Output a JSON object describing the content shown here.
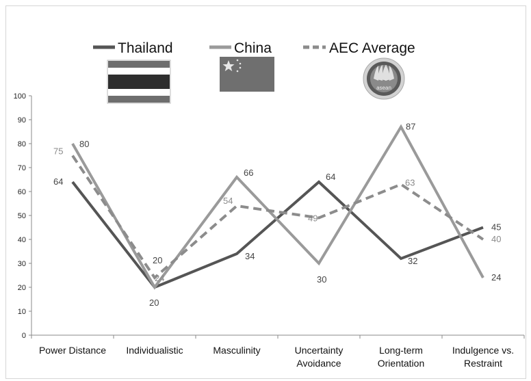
{
  "chart_data": {
    "type": "line",
    "categories": [
      "Power Distance",
      "Individualistic",
      "Masculinity",
      "Uncertainty Avoidance",
      "Long-term Orientation",
      "Indulgence vs. Restraint"
    ],
    "category_lines": [
      [
        "Power Distance"
      ],
      [
        "Individualistic"
      ],
      [
        "Masculinity"
      ],
      [
        "Uncertainty",
        "Avoidance"
      ],
      [
        "Long-term",
        "Orientation"
      ],
      [
        "Indulgence vs.",
        "Restraint"
      ]
    ],
    "ylim": [
      0,
      100
    ],
    "yticks": [
      0,
      10,
      20,
      30,
      40,
      50,
      60,
      70,
      80,
      90,
      100
    ],
    "grid": false,
    "legend_position": "top",
    "series": [
      {
        "name": "Thailand",
        "values": [
          64,
          20,
          34,
          64,
          32,
          45
        ],
        "color": "#555555",
        "dash": false,
        "icon": "thailand-flag-icon"
      },
      {
        "name": "China",
        "values": [
          80,
          20,
          66,
          30,
          87,
          24
        ],
        "color": "#9a9a9a",
        "dash": false,
        "icon": "china-flag-icon"
      },
      {
        "name": "AEC Average",
        "values": [
          75,
          24,
          54,
          49,
          63,
          40
        ],
        "color": "#8c8c8c",
        "dash": true,
        "icon": "asean-emblem-icon"
      }
    ],
    "emblem_text": "asean"
  }
}
